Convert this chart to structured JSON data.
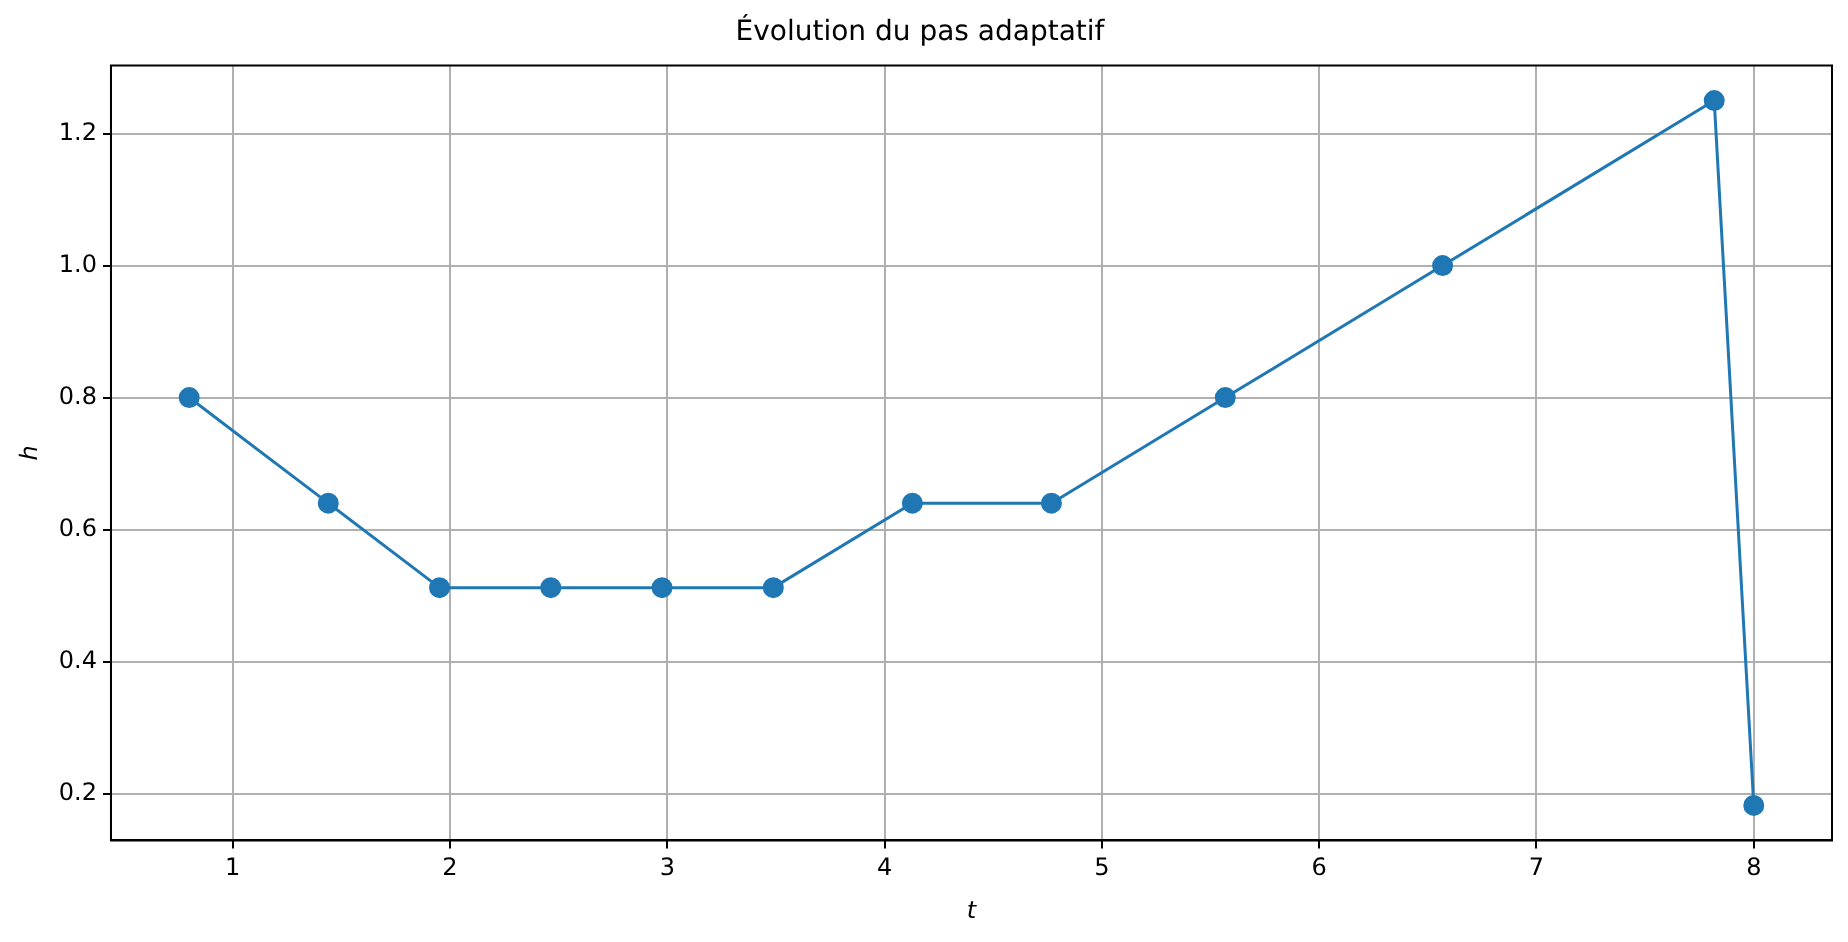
{
  "chart_data": {
    "type": "line",
    "title": "Évolution du pas adaptatif",
    "xlabel": "t",
    "ylabel": "h",
    "x": [
      0.8,
      1.44,
      1.952,
      2.464,
      2.976,
      3.488,
      4.128,
      4.768,
      5.568,
      6.568,
      7.818,
      8.0
    ],
    "series": [
      {
        "color": "#1f77b4",
        "values": [
          0.8,
          0.64,
          0.512,
          0.512,
          0.512,
          0.512,
          0.64,
          0.64,
          0.8,
          1.0,
          1.25,
          0.182
        ]
      }
    ],
    "xlim": [
      0.44,
      8.36
    ],
    "ylim": [
      0.129,
      1.303
    ],
    "xticks": [
      1,
      2,
      3,
      4,
      5,
      6,
      7,
      8
    ],
    "yticks": [
      {
        "value": 0.2,
        "label": "0.2"
      },
      {
        "value": 0.4,
        "label": "0.4"
      },
      {
        "value": 0.6,
        "label": "0.6"
      },
      {
        "value": 0.8,
        "label": "0.8"
      },
      {
        "value": 1.0,
        "label": "1.0"
      },
      {
        "value": 1.2,
        "label": "1.2"
      }
    ],
    "grid": true,
    "marker": "circle",
    "line_style": "solid",
    "legend": false
  }
}
